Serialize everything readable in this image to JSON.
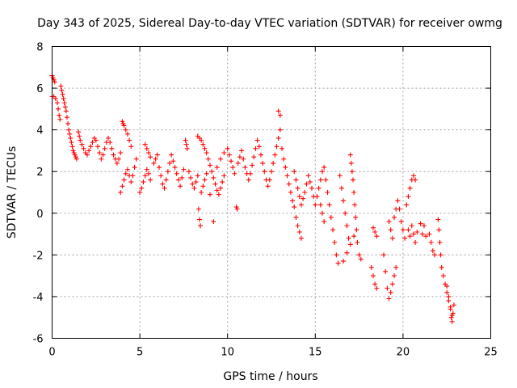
{
  "chart_data": {
    "type": "scatter",
    "title": "Day 343 of 2025, Sidereal Day-to-day VTEC variation (SDTVAR) for receiver owmg",
    "xlabel": "GPS time / hours",
    "ylabel": "SDTVAR / TECUs",
    "xlim": [
      0,
      25
    ],
    "ylim": [
      -6,
      8
    ],
    "xticks": [
      0,
      5,
      10,
      15,
      20,
      25
    ],
    "yticks": [
      -6,
      -4,
      -2,
      0,
      2,
      4,
      6,
      8
    ],
    "grid": true,
    "marker": "+",
    "series": [
      {
        "name": "owmg",
        "color": "#ff0000",
        "points": [
          [
            0.0,
            6.6
          ],
          [
            0.05,
            6.5
          ],
          [
            0.1,
            6.4
          ],
          [
            0.15,
            6.3
          ],
          [
            0.0,
            5.6
          ],
          [
            0.1,
            5.6
          ],
          [
            0.2,
            5.5
          ],
          [
            0.3,
            5.3
          ],
          [
            0.35,
            5.0
          ],
          [
            0.4,
            4.7
          ],
          [
            0.45,
            4.5
          ],
          [
            0.5,
            6.1
          ],
          [
            0.55,
            5.9
          ],
          [
            0.6,
            5.7
          ],
          [
            0.65,
            5.5
          ],
          [
            0.7,
            5.3
          ],
          [
            0.75,
            5.1
          ],
          [
            0.8,
            4.9
          ],
          [
            0.85,
            4.6
          ],
          [
            0.9,
            4.3
          ],
          [
            0.95,
            4.0
          ],
          [
            1.0,
            3.8
          ],
          [
            1.05,
            3.6
          ],
          [
            1.1,
            3.4
          ],
          [
            1.15,
            3.2
          ],
          [
            1.2,
            3.0
          ],
          [
            1.25,
            2.9
          ],
          [
            1.3,
            2.8
          ],
          [
            1.35,
            2.7
          ],
          [
            1.4,
            2.6
          ],
          [
            1.5,
            3.9
          ],
          [
            1.55,
            3.7
          ],
          [
            1.6,
            3.5
          ],
          [
            1.7,
            3.3
          ],
          [
            1.8,
            3.1
          ],
          [
            1.9,
            2.9
          ],
          [
            2.0,
            2.8
          ],
          [
            2.1,
            3.0
          ],
          [
            2.2,
            3.2
          ],
          [
            2.3,
            3.4
          ],
          [
            2.4,
            3.6
          ],
          [
            2.5,
            3.5
          ],
          [
            2.6,
            3.2
          ],
          [
            2.7,
            2.9
          ],
          [
            2.8,
            2.6
          ],
          [
            2.9,
            2.8
          ],
          [
            3.0,
            3.1
          ],
          [
            3.1,
            3.4
          ],
          [
            3.2,
            3.6
          ],
          [
            3.3,
            3.4
          ],
          [
            3.4,
            3.1
          ],
          [
            3.5,
            2.8
          ],
          [
            3.6,
            2.6
          ],
          [
            3.7,
            2.4
          ],
          [
            3.8,
            2.6
          ],
          [
            3.9,
            2.9
          ],
          [
            4.0,
            4.4
          ],
          [
            4.05,
            4.3
          ],
          [
            4.1,
            4.2
          ],
          [
            4.2,
            4.0
          ],
          [
            4.3,
            3.8
          ],
          [
            4.4,
            3.5
          ],
          [
            4.5,
            3.2
          ],
          [
            3.9,
            1.0
          ],
          [
            4.0,
            1.3
          ],
          [
            4.1,
            1.6
          ],
          [
            4.2,
            1.9
          ],
          [
            4.3,
            2.1
          ],
          [
            4.4,
            1.8
          ],
          [
            4.5,
            1.5
          ],
          [
            4.6,
            1.8
          ],
          [
            4.7,
            2.2
          ],
          [
            4.8,
            2.6
          ],
          [
            5.0,
            1.0
          ],
          [
            5.1,
            1.2
          ],
          [
            5.2,
            1.5
          ],
          [
            5.3,
            1.8
          ],
          [
            5.4,
            2.1
          ],
          [
            5.5,
            1.9
          ],
          [
            5.6,
            1.6
          ],
          [
            5.3,
            3.3
          ],
          [
            5.4,
            3.1
          ],
          [
            5.5,
            2.9
          ],
          [
            5.6,
            2.7
          ],
          [
            5.8,
            2.4
          ],
          [
            5.9,
            2.6
          ],
          [
            6.0,
            2.8
          ],
          [
            6.1,
            2.2
          ],
          [
            6.2,
            1.8
          ],
          [
            6.3,
            1.4
          ],
          [
            6.4,
            1.2
          ],
          [
            6.5,
            1.6
          ],
          [
            6.6,
            2.0
          ],
          [
            6.7,
            2.4
          ],
          [
            6.8,
            2.8
          ],
          [
            6.9,
            2.5
          ],
          [
            7.0,
            2.2
          ],
          [
            7.1,
            1.9
          ],
          [
            7.2,
            1.6
          ],
          [
            7.3,
            1.3
          ],
          [
            7.4,
            1.7
          ],
          [
            7.5,
            2.1
          ],
          [
            7.6,
            3.5
          ],
          [
            7.65,
            3.3
          ],
          [
            7.7,
            3.1
          ],
          [
            7.8,
            2.0
          ],
          [
            7.9,
            1.7
          ],
          [
            8.0,
            1.4
          ],
          [
            8.1,
            1.2
          ],
          [
            8.2,
            1.5
          ],
          [
            8.3,
            1.8
          ],
          [
            8.35,
            0.2
          ],
          [
            8.4,
            -0.3
          ],
          [
            8.45,
            -0.6
          ],
          [
            8.5,
            1.0
          ],
          [
            8.6,
            1.3
          ],
          [
            8.7,
            1.6
          ],
          [
            8.8,
            1.9
          ],
          [
            8.3,
            3.7
          ],
          [
            8.4,
            3.6
          ],
          [
            8.5,
            3.5
          ],
          [
            8.6,
            3.3
          ],
          [
            8.7,
            3.1
          ],
          [
            8.8,
            2.9
          ],
          [
            8.9,
            2.6
          ],
          [
            9.0,
            2.3
          ],
          [
            9.1,
            2.0
          ],
          [
            9.2,
            1.7
          ],
          [
            9.3,
            1.4
          ],
          [
            9.4,
            1.1
          ],
          [
            9.5,
            0.9
          ],
          [
            9.6,
            1.2
          ],
          [
            9.7,
            1.5
          ],
          [
            9.8,
            1.8
          ],
          [
            9.0,
            0.9
          ],
          [
            9.2,
            -0.4
          ],
          [
            9.4,
            2.2
          ],
          [
            9.6,
            2.6
          ],
          [
            9.8,
            2.9
          ],
          [
            10.0,
            3.1
          ],
          [
            10.1,
            2.8
          ],
          [
            10.2,
            2.5
          ],
          [
            10.3,
            2.2
          ],
          [
            10.4,
            1.9
          ],
          [
            10.5,
            0.3
          ],
          [
            10.55,
            0.2
          ],
          [
            10.6,
            2.4
          ],
          [
            10.7,
            2.7
          ],
          [
            10.8,
            3.0
          ],
          [
            10.9,
            2.6
          ],
          [
            11.0,
            2.2
          ],
          [
            11.1,
            1.9
          ],
          [
            11.2,
            1.6
          ],
          [
            11.3,
            1.9
          ],
          [
            11.4,
            2.3
          ],
          [
            11.5,
            2.7
          ],
          [
            11.6,
            3.1
          ],
          [
            11.7,
            3.5
          ],
          [
            11.8,
            3.2
          ],
          [
            11.9,
            2.8
          ],
          [
            12.0,
            2.4
          ],
          [
            12.1,
            2.0
          ],
          [
            12.2,
            1.6
          ],
          [
            12.3,
            1.3
          ],
          [
            12.4,
            1.6
          ],
          [
            12.5,
            2.0
          ],
          [
            12.6,
            2.4
          ],
          [
            12.7,
            2.8
          ],
          [
            12.8,
            3.2
          ],
          [
            12.9,
            3.6
          ],
          [
            13.0,
            4.0
          ],
          [
            12.9,
            4.9
          ],
          [
            13.0,
            4.7
          ],
          [
            13.1,
            3.1
          ],
          [
            13.2,
            2.6
          ],
          [
            13.3,
            2.2
          ],
          [
            13.4,
            1.8
          ],
          [
            13.5,
            1.4
          ],
          [
            13.6,
            1.0
          ],
          [
            13.7,
            0.6
          ],
          [
            13.8,
            0.3
          ],
          [
            13.9,
            -0.2
          ],
          [
            14.0,
            -0.6
          ],
          [
            14.1,
            -0.9
          ],
          [
            14.2,
            -1.2
          ],
          [
            13.8,
            2.0
          ],
          [
            13.9,
            1.6
          ],
          [
            14.0,
            1.2
          ],
          [
            14.1,
            0.8
          ],
          [
            14.2,
            0.4
          ],
          [
            14.3,
            0.7
          ],
          [
            14.4,
            1.0
          ],
          [
            14.5,
            1.4
          ],
          [
            14.6,
            1.8
          ],
          [
            14.7,
            1.5
          ],
          [
            14.8,
            1.2
          ],
          [
            14.9,
            0.8
          ],
          [
            15.0,
            0.4
          ],
          [
            15.1,
            0.8
          ],
          [
            15.2,
            1.2
          ],
          [
            15.3,
            1.6
          ],
          [
            15.4,
            2.0
          ],
          [
            15.5,
            2.2
          ],
          [
            15.6,
            1.6
          ],
          [
            15.7,
            1.0
          ],
          [
            15.8,
            0.4
          ],
          [
            15.9,
            -0.2
          ],
          [
            16.0,
            -0.8
          ],
          [
            16.1,
            -1.4
          ],
          [
            16.2,
            -2.0
          ],
          [
            16.3,
            -2.4
          ],
          [
            15.3,
            0.4
          ],
          [
            15.4,
            0.0
          ],
          [
            15.5,
            -0.4
          ],
          [
            16.4,
            1.8
          ],
          [
            16.5,
            1.2
          ],
          [
            16.6,
            0.6
          ],
          [
            16.7,
            0.0
          ],
          [
            16.8,
            -0.6
          ],
          [
            16.9,
            -1.2
          ],
          [
            17.0,
            2.8
          ],
          [
            17.05,
            2.4
          ],
          [
            17.1,
            2.0
          ],
          [
            17.15,
            1.6
          ],
          [
            17.2,
            1.0
          ],
          [
            17.25,
            0.4
          ],
          [
            17.3,
            -0.2
          ],
          [
            17.35,
            -0.8
          ],
          [
            17.4,
            -1.4
          ],
          [
            17.5,
            -2.0
          ],
          [
            17.6,
            -2.2
          ],
          [
            16.6,
            -2.3
          ],
          [
            16.8,
            -1.9
          ],
          [
            17.0,
            -1.5
          ],
          [
            17.2,
            -1.1
          ],
          [
            18.2,
            -2.6
          ],
          [
            18.3,
            -3.0
          ],
          [
            18.4,
            -3.4
          ],
          [
            18.5,
            -3.6
          ],
          [
            18.3,
            -0.7
          ],
          [
            18.4,
            -0.9
          ],
          [
            18.5,
            -1.1
          ],
          [
            18.9,
            -2.0
          ],
          [
            19.0,
            -2.8
          ],
          [
            19.1,
            -3.6
          ],
          [
            19.2,
            -4.1
          ],
          [
            19.3,
            -3.8
          ],
          [
            19.4,
            -3.4
          ],
          [
            19.5,
            -3.0
          ],
          [
            19.6,
            -2.6
          ],
          [
            19.2,
            -0.4
          ],
          [
            19.3,
            -0.8
          ],
          [
            19.4,
            -1.2
          ],
          [
            19.5,
            -0.2
          ],
          [
            19.6,
            0.2
          ],
          [
            19.7,
            0.6
          ],
          [
            19.8,
            0.2
          ],
          [
            19.9,
            -0.4
          ],
          [
            20.0,
            -0.8
          ],
          [
            20.1,
            -1.2
          ],
          [
            20.2,
            0.4
          ],
          [
            20.3,
            0.8
          ],
          [
            20.4,
            1.2
          ],
          [
            20.5,
            1.6
          ],
          [
            20.6,
            1.8
          ],
          [
            20.7,
            1.6
          ],
          [
            20.3,
            -0.8
          ],
          [
            20.4,
            -1.1
          ],
          [
            20.5,
            -0.6
          ],
          [
            20.6,
            -1.0
          ],
          [
            20.7,
            -1.4
          ],
          [
            20.8,
            -0.9
          ],
          [
            21.0,
            -0.5
          ],
          [
            21.1,
            -1.0
          ],
          [
            21.2,
            -0.6
          ],
          [
            21.3,
            -1.1
          ],
          [
            21.5,
            -1.0
          ],
          [
            21.6,
            -1.4
          ],
          [
            21.7,
            -1.8
          ],
          [
            21.8,
            -2.0
          ],
          [
            22.0,
            -0.3
          ],
          [
            22.05,
            -0.8
          ],
          [
            22.1,
            -1.4
          ],
          [
            22.15,
            -2.0
          ],
          [
            22.2,
            -2.6
          ],
          [
            22.3,
            -3.0
          ],
          [
            22.4,
            -3.4
          ],
          [
            22.5,
            -3.8
          ],
          [
            22.6,
            -4.2
          ],
          [
            22.7,
            -4.6
          ],
          [
            22.75,
            -5.0
          ],
          [
            22.8,
            -5.2
          ],
          [
            22.85,
            -4.8
          ],
          [
            22.9,
            -4.4
          ],
          [
            22.5,
            -3.5
          ],
          [
            22.6,
            -4.0
          ],
          [
            22.7,
            -4.5
          ],
          [
            22.8,
            -4.9
          ]
        ]
      }
    ]
  }
}
